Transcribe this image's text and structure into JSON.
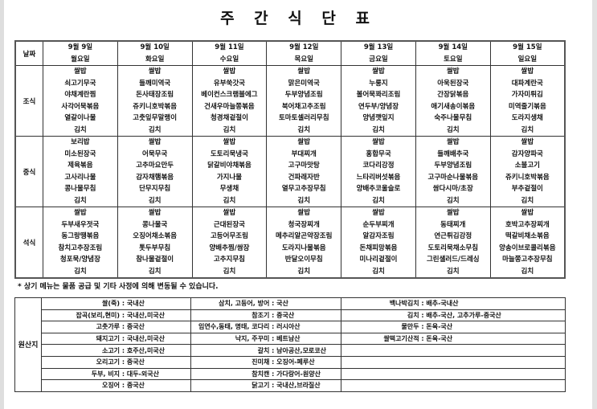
{
  "title": "주 간 식 단 표",
  "header": {
    "label": "날짜",
    "days": [
      {
        "date": "9월 9일",
        "weekday": "월요일"
      },
      {
        "date": "9월 10일",
        "weekday": "화요일"
      },
      {
        "date": "9월 11일",
        "weekday": "수요일"
      },
      {
        "date": "9월 12일",
        "weekday": "목요일"
      },
      {
        "date": "9월 13일",
        "weekday": "금요일"
      },
      {
        "date": "9월 14일",
        "weekday": "토요일"
      },
      {
        "date": "9월 15일",
        "weekday": "일요일"
      }
    ]
  },
  "meals": [
    {
      "label": "조식",
      "days": [
        [
          "쌀밥",
          "쇠고기무국",
          "야채계란찜",
          "사각어묵볶음",
          "열갈이나물",
          "김치"
        ],
        [
          "쌀밥",
          "들깨미역국",
          "돈사태장조림",
          "쥬키니호박볶음",
          "고춧잎무말랭이",
          "김치"
        ],
        [
          "쌀밥",
          "유부쑥갓국",
          "베이컨스크램블에그",
          "건새우마늘쫑볶음",
          "청경채겉절이",
          "김치"
        ],
        [
          "쌀밥",
          "맑은미역국",
          "두부양념조림",
          "북어채고추조림",
          "토마토셀러리무침",
          "김치"
        ],
        [
          "쌀밥",
          "누룽지",
          "볼어묵꽈리조림",
          "연두부/양념장",
          "양념깻잎지",
          "김치"
        ],
        [
          "쌀밥",
          "아욱된장국",
          "간장닭볶음",
          "애기새송이볶음",
          "숙주나물무침",
          "김치"
        ],
        [
          "쌀밥",
          "대파계란국",
          "가자미튀김",
          "미역줄기볶음",
          "도라지생채",
          "김치"
        ]
      ]
    },
    {
      "label": "중식",
      "days": [
        [
          "보리밥",
          "미소된장국",
          "제육볶음",
          "고사리나물",
          "콩나물무침",
          "김치"
        ],
        [
          "쌀밥",
          "어묵무국",
          "고추마요만두",
          "감자채햄볶음",
          "단무지무침",
          "김치"
        ],
        [
          "쌀밥",
          "도토리묵냉국",
          "닭갈비야채볶음",
          "가지나물",
          "무생채",
          "김치"
        ],
        [
          "쌀밥",
          "부대찌개",
          "고구마맛탕",
          "건파래자반",
          "열무고추장무침",
          "김치"
        ],
        [
          "쌀밥",
          "홍합무국",
          "코다리강정",
          "느타리버섯볶음",
          "양배추코울슬로",
          "김치"
        ],
        [
          "쌀밥",
          "들깨배추국",
          "두부양념조림",
          "고구마순나물볶음",
          "쌈다시마/초장",
          "김치"
        ],
        [
          "쌀밥",
          "감자양파국",
          "소불고기",
          "쥬키니호박볶음",
          "부추겉절이",
          "김치"
        ]
      ]
    },
    {
      "label": "석식",
      "days": [
        [
          "쌀밥",
          "두부새우젓국",
          "동그랑땡볶음",
          "참치고추장조림",
          "청포묵/양념장",
          "김치"
        ],
        [
          "쌀밥",
          "콩나물국",
          "오징어채소볶음",
          "톳두부무침",
          "참나물겉절이",
          "김치"
        ],
        [
          "쌀밥",
          "근대된장국",
          "고등어무조림",
          "양배추찜/쌈장",
          "고추지무침",
          "김치"
        ],
        [
          "쌀밥",
          "청국장찌개",
          "메추리알곤약장조림",
          "도라지나물볶음",
          "반달오이무침",
          "김치"
        ],
        [
          "쌀밥",
          "순두부찌개",
          "알감자조림",
          "돈채피망볶음",
          "미나리겉절이",
          "김치"
        ],
        [
          "쌀밥",
          "동태찌개",
          "연근튀김강정",
          "도토리묵채소무침",
          "그린샐러드/드레싱",
          "김치"
        ],
        [
          "쌀밥",
          "호박고추장찌개",
          "떡갈비채소볶음",
          "양송이브로콜리볶음",
          "마늘쫑고추장무침",
          "김치"
        ]
      ]
    }
  ],
  "note": "* 상기 메뉴는 물품 공급 및 기타 사정에 의해 변동될 수 있습니다.",
  "origin": {
    "label": "원산지",
    "rows": [
      [
        [
          "쌀(죽)",
          "국내산"
        ],
        [
          "삼치, 고등어, 방어",
          "국산"
        ],
        [
          "백나박김치",
          "배추-국내산"
        ]
      ],
      [
        [
          "잡곡(보리,현미)",
          "국내산,미국산"
        ],
        [
          "참조기",
          "중국산"
        ],
        [
          "김치",
          "배추-국산, 고추가루-중국산"
        ]
      ],
      [
        [
          "고춧가루",
          "중국산"
        ],
        [
          "임연수,동태, 명태, 코다리",
          "러시아산"
        ],
        [
          "물만두",
          "돈육-국산"
        ]
      ],
      [
        [
          "돼지고기",
          "국내산,미국산"
        ],
        [
          "낙지, 주꾸미",
          "베트남산"
        ],
        [
          "쌀떡고기산적",
          "돈육-국산"
        ]
      ],
      [
        [
          "소고기",
          "호주산,미국산"
        ],
        [
          "갈치",
          "남아공산,모로코산"
        ],
        null
      ],
      [
        [
          "오리고기",
          "중국산"
        ],
        [
          "진미채",
          "오징어-페루산"
        ],
        null
      ],
      [
        [
          "두부, 비지",
          "대두-외국산"
        ],
        [
          "참치캔",
          "가다랑어-원양산"
        ],
        null
      ],
      [
        [
          "오징어",
          "중국산"
        ],
        [
          "닭고기",
          "국내산,브라질산"
        ],
        null
      ]
    ]
  }
}
